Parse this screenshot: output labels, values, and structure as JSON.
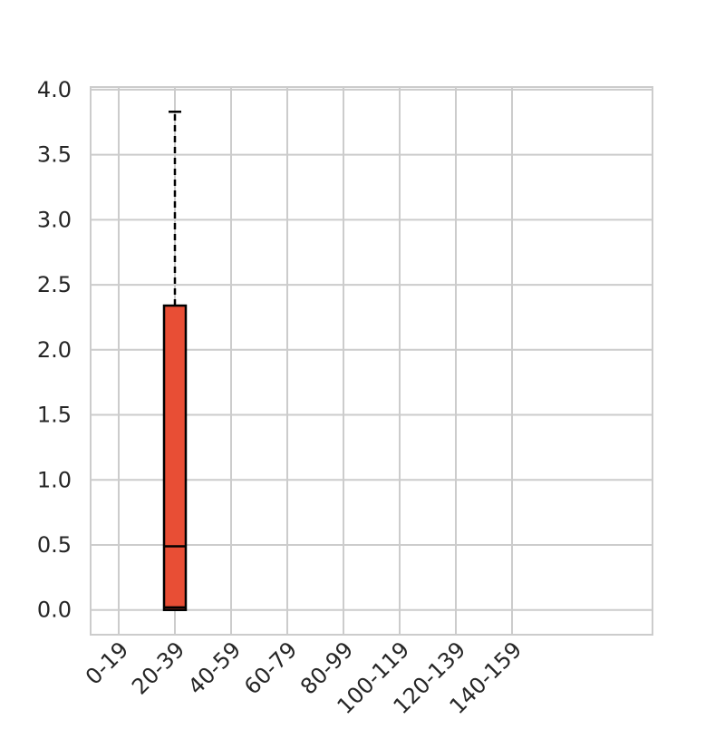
{
  "chart_data": {
    "type": "box",
    "title": "",
    "xlabel": "",
    "ylabel": "",
    "categories": [
      "0-19",
      "20-39",
      "40-59",
      "60-79",
      "80-99",
      "100-119",
      "120-139",
      "140-159"
    ],
    "ylim": [
      -0.19,
      4.02
    ],
    "yticks": [
      0.0,
      0.5,
      1.0,
      1.5,
      2.0,
      2.5,
      3.0,
      3.5,
      4.0
    ],
    "ytick_labels": [
      "0.0",
      "0.5",
      "1.0",
      "1.5",
      "2.0",
      "2.5",
      "3.0",
      "3.5",
      "4.0"
    ],
    "grid": true,
    "boxes": [
      {
        "category": "20-39",
        "whisker_low": 0.0,
        "q1": 0.0,
        "median": 0.02,
        "mean": 0.49,
        "q3": 2.34,
        "whisker_high": 3.83
      }
    ],
    "colors": {
      "box_fill": "#e84e35",
      "box_edge": "#000000",
      "grid": "#cccccc",
      "text": "#262626"
    }
  }
}
